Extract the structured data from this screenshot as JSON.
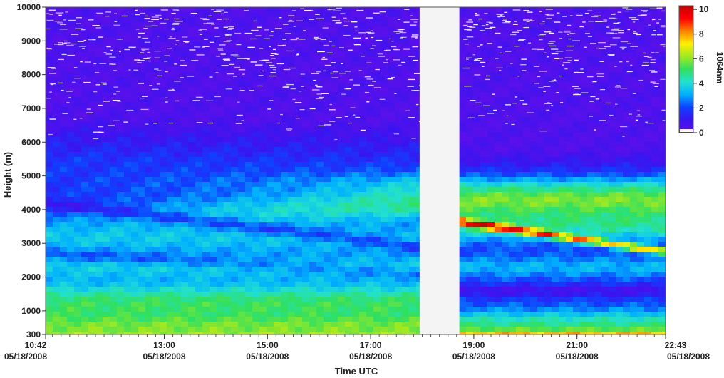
{
  "chart_data": {
    "type": "heatmap",
    "title": "",
    "xlabel": "Time UTC",
    "ylabel": "Height (m)",
    "colorbar_label": "1064nm",
    "x_range": [
      "10:42 05/18/2008",
      "22:43 05/18/2008"
    ],
    "ylim": [
      300,
      10000
    ],
    "x_ticks": [
      {
        "time": "10:42",
        "date": "05/18/2008",
        "hours": 10.7
      },
      {
        "time": "13:00",
        "date": "05/18/2008",
        "hours": 13.0
      },
      {
        "time": "15:00",
        "date": "05/18/2008",
        "hours": 15.0
      },
      {
        "time": "17:00",
        "date": "05/18/2008",
        "hours": 17.0
      },
      {
        "time": "19:00",
        "date": "05/18/2008",
        "hours": 19.0
      },
      {
        "time": "21:00",
        "date": "05/18/2008",
        "hours": 21.0
      },
      {
        "time": "22:43",
        "date": "05/18/2008",
        "hours": 22.717
      }
    ],
    "y_ticks": [
      300,
      1000,
      2000,
      3000,
      4000,
      5000,
      6000,
      7000,
      8000,
      9000,
      10000
    ],
    "colorbar": {
      "min": 0,
      "max": 10.3,
      "ticks": [
        0,
        2,
        4,
        6,
        8,
        10
      ]
    },
    "data_gap_hours": [
      17.95,
      18.72
    ],
    "features": [
      {
        "name": "surface layer",
        "height_range": [
          300,
          1800
        ],
        "intensity": 5.5
      },
      {
        "name": "aerosol layer (morning)",
        "height_range": [
          3500,
          5500
        ],
        "intensity": 4
      },
      {
        "name": "aerosol layer (evening)",
        "height_range": [
          2700,
          5000
        ],
        "intensity": 6
      },
      {
        "name": "peak band (evening)",
        "heights": [
          3600,
          2700
        ],
        "intensity": 10
      },
      {
        "name": "free troposphere",
        "height_range": [
          5500,
          10000
        ],
        "intensity": 0.5
      }
    ]
  },
  "colors": {
    "scale": [
      "#5a10ea",
      "#3a14f0",
      "#1040ff",
      "#00b0ff",
      "#22e0d0",
      "#30e060",
      "#a0e820",
      "#fff000",
      "#ff8000",
      "#ff0000",
      "#c80000"
    ],
    "gap_fill": "#f4f4f4"
  }
}
